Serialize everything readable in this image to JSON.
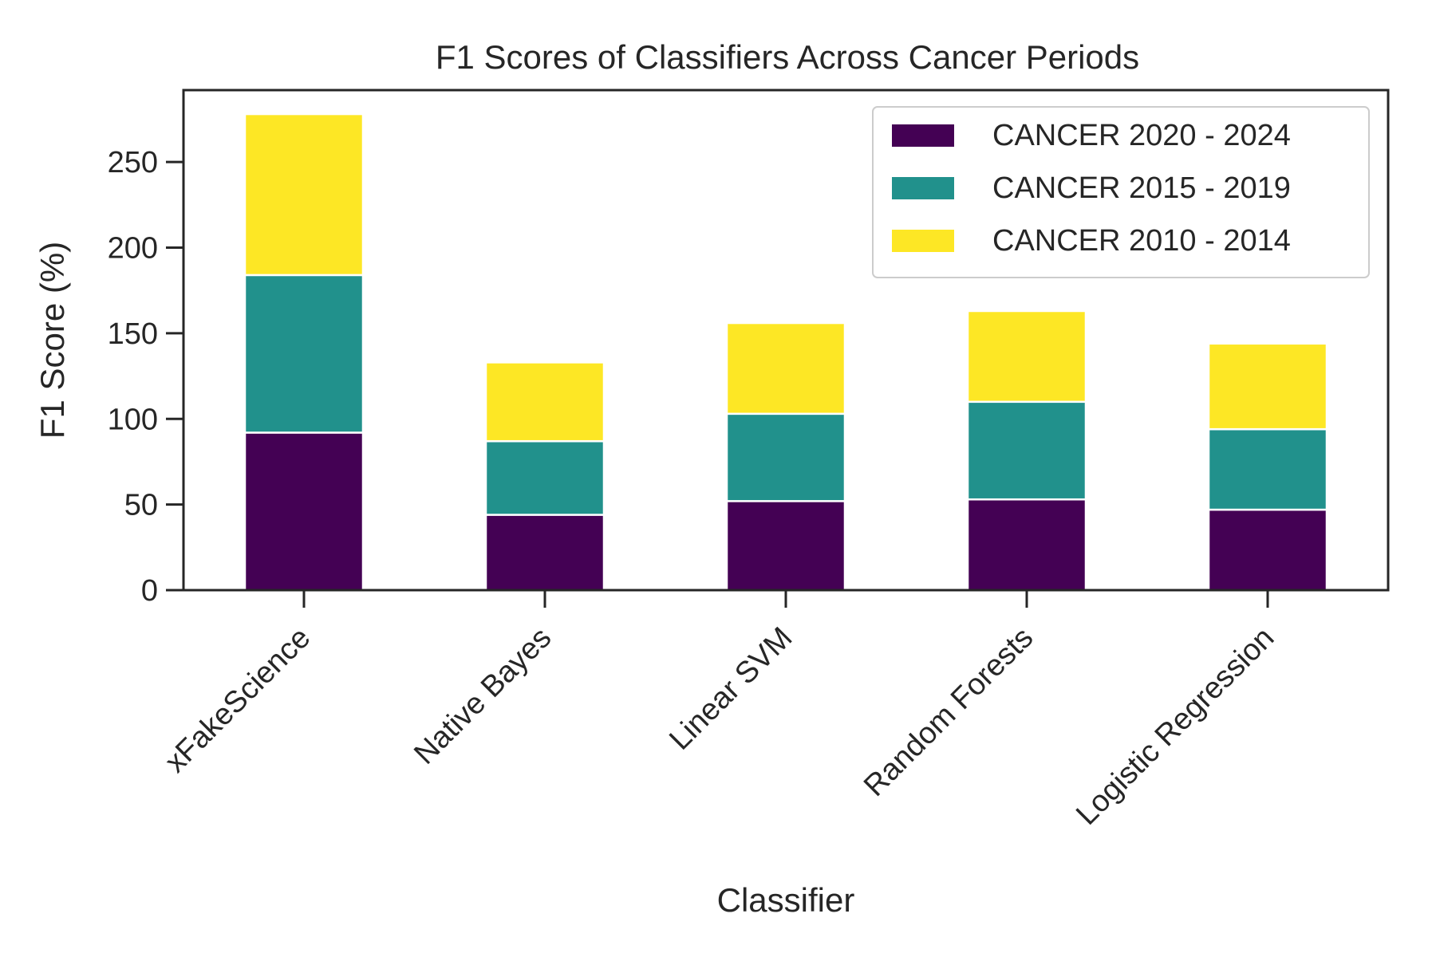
{
  "chart_data": {
    "type": "bar",
    "stacked": true,
    "title": "F1 Scores of Classifiers Across Cancer Periods",
    "xlabel": "Classifier",
    "ylabel": "F1 Score (%)",
    "categories": [
      "xFakeScience",
      "Native Bayes",
      "Linear SVM",
      "Random Forests",
      "Logistic Regression"
    ],
    "series": [
      {
        "name": "CANCER 2020 - 2024",
        "color": "#440154",
        "values": [
          92,
          44,
          52,
          53,
          47
        ]
      },
      {
        "name": "CANCER 2015 - 2019",
        "color": "#21918c",
        "values": [
          92,
          43,
          51,
          57,
          47
        ]
      },
      {
        "name": "CANCER 2010 - 2014",
        "color": "#fde725",
        "values": [
          94,
          46,
          53,
          53,
          50
        ]
      }
    ],
    "yticks": [
      0,
      50,
      100,
      150,
      200,
      250
    ],
    "ylim": [
      0,
      292
    ],
    "grid": false,
    "legend_position": "top-right"
  }
}
